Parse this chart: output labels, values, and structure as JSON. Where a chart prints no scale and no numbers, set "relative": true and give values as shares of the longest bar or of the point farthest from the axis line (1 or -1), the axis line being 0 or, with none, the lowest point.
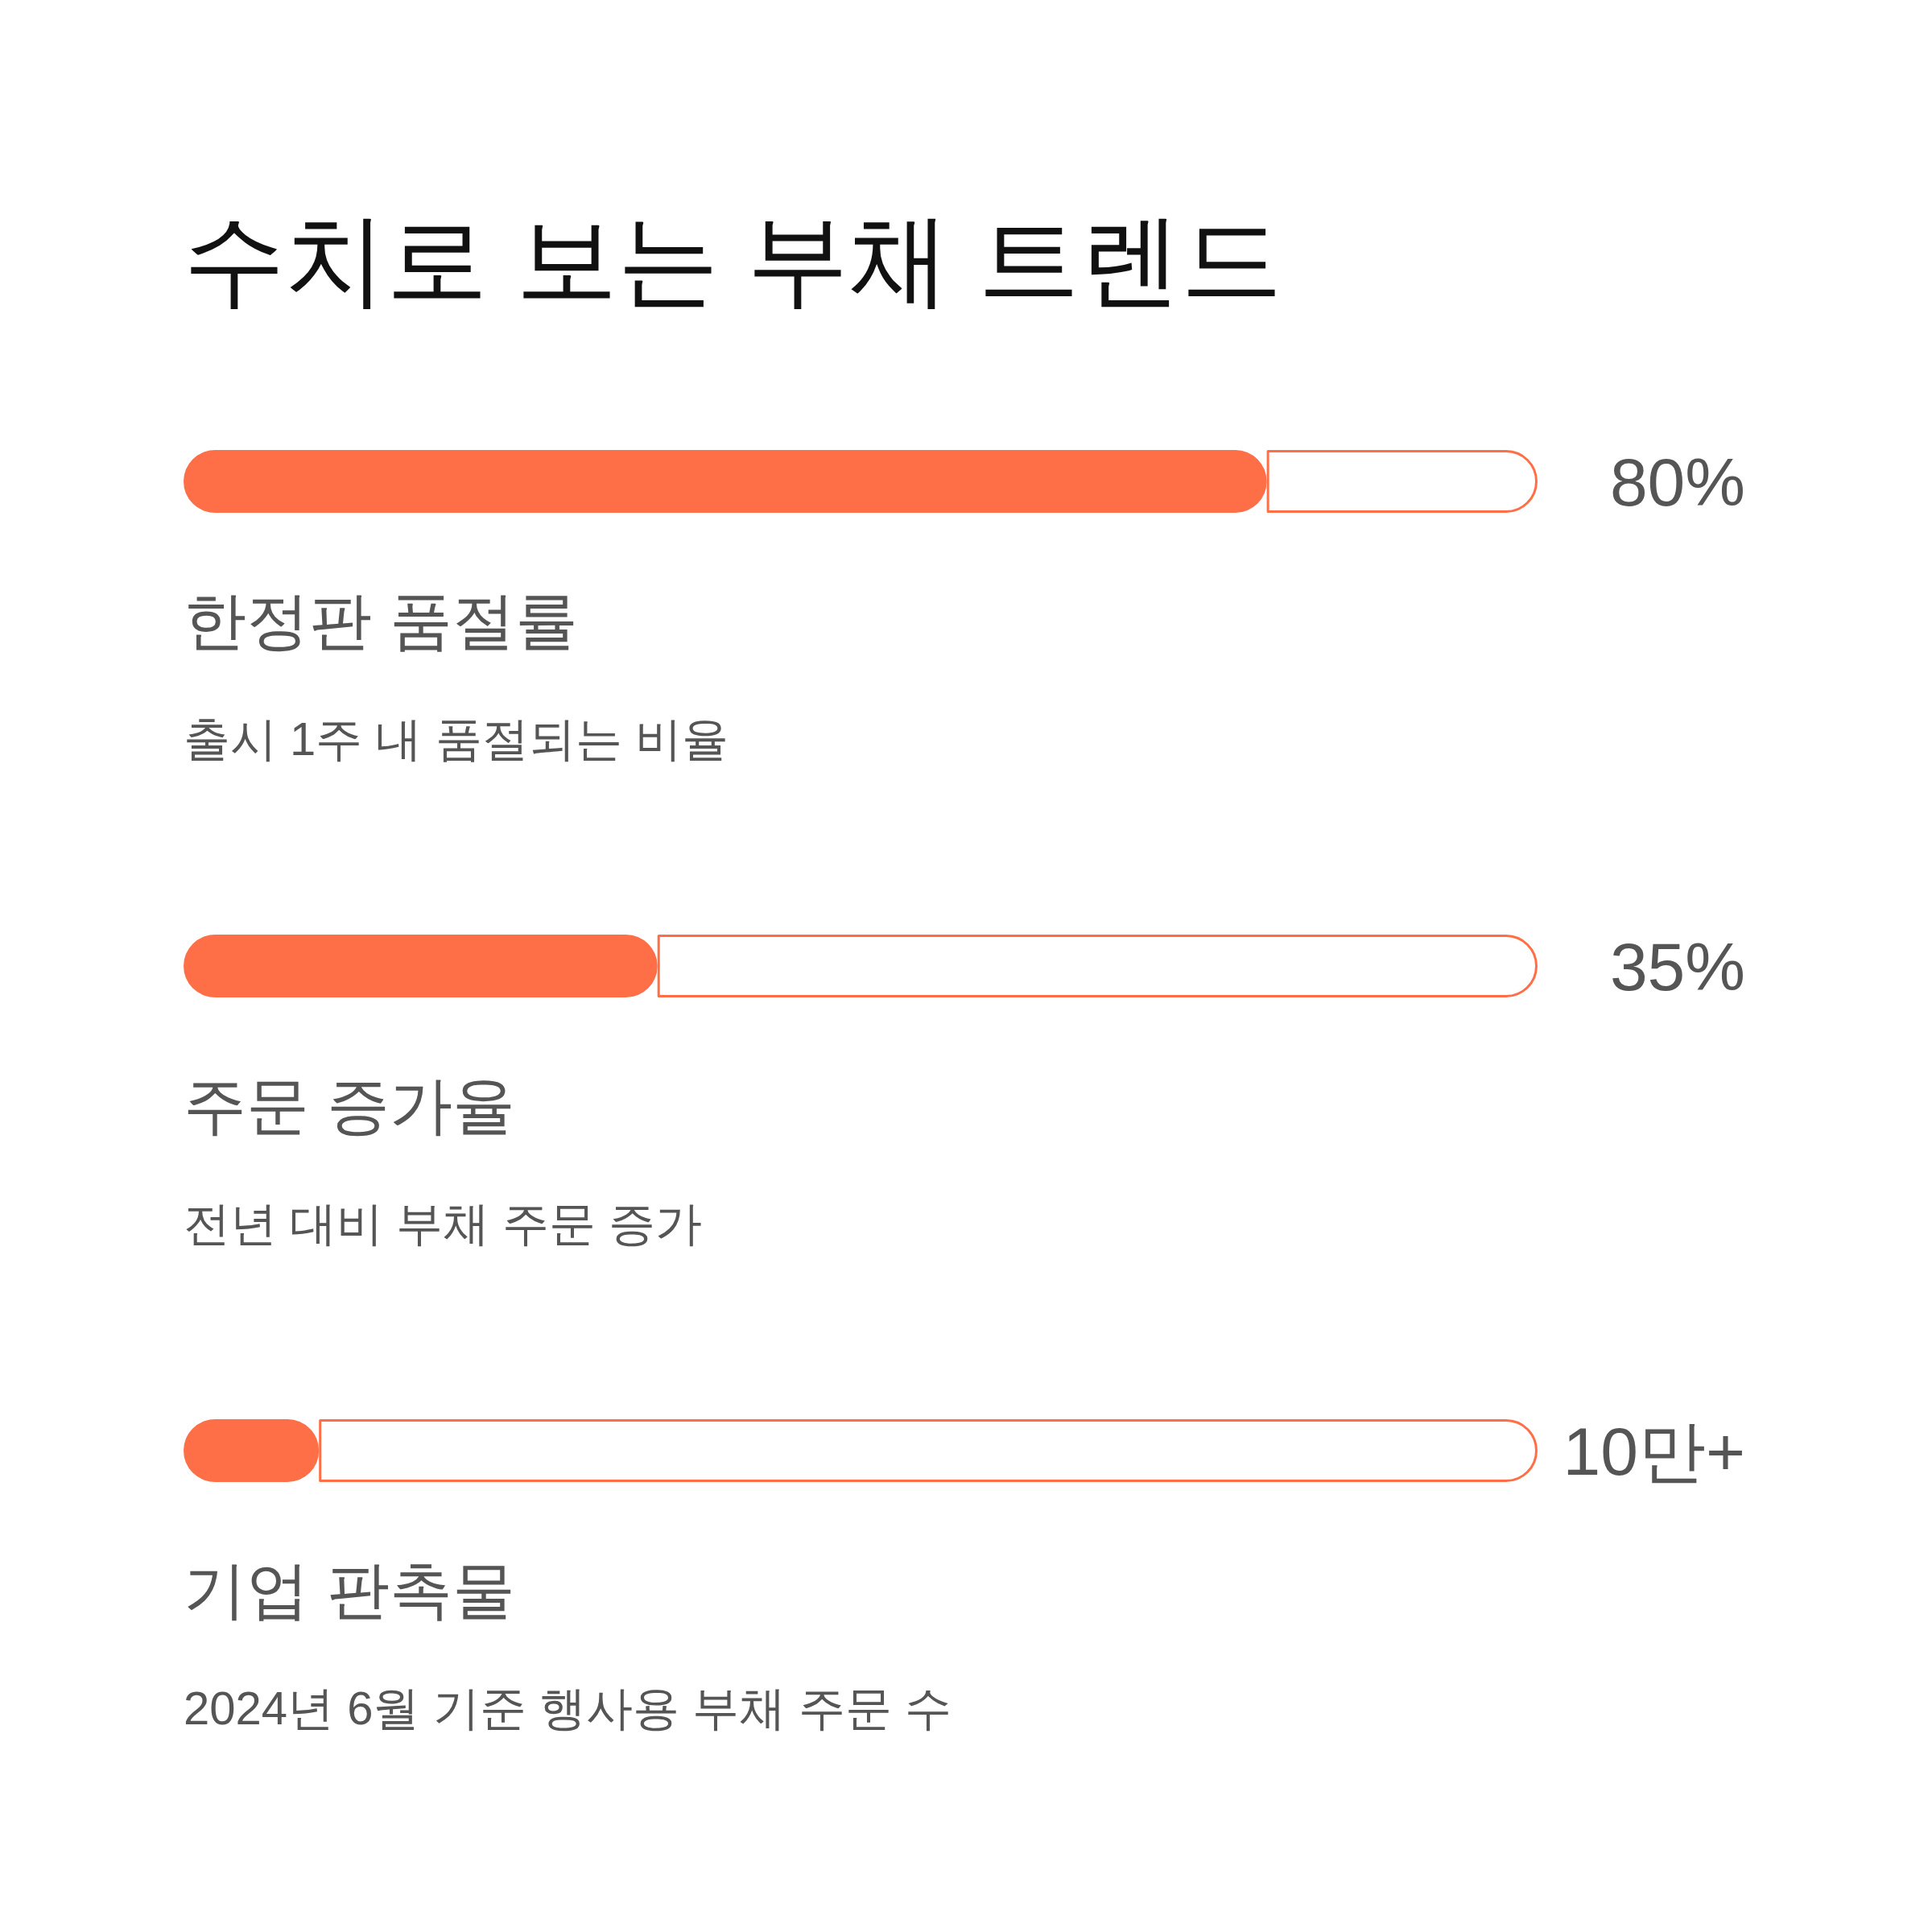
{
  "chart_data": {
    "type": "bar",
    "orientation": "horizontal",
    "stacked": true,
    "title": "수치로 보는 부채 트렌드",
    "categories": [
      "한정판 품절률",
      "주문 증가율",
      "기업 판촉물"
    ],
    "relative": true,
    "series": [
      {
        "color": "#ff6f47",
        "values": [
          0.8,
          0.35,
          0.1
        ]
      },
      {
        "color": "#ffffff",
        "values": [
          0.2,
          0.65,
          0.9
        ]
      }
    ],
    "value_labels": [
      "80%",
      "35%",
      "10만+"
    ],
    "annotations": [
      "출시 1주 내 품절되는 비율",
      "전년 대비 부채 주문 증가",
      "2024년 6월 기준 행사용 부채 주문 수"
    ]
  }
}
